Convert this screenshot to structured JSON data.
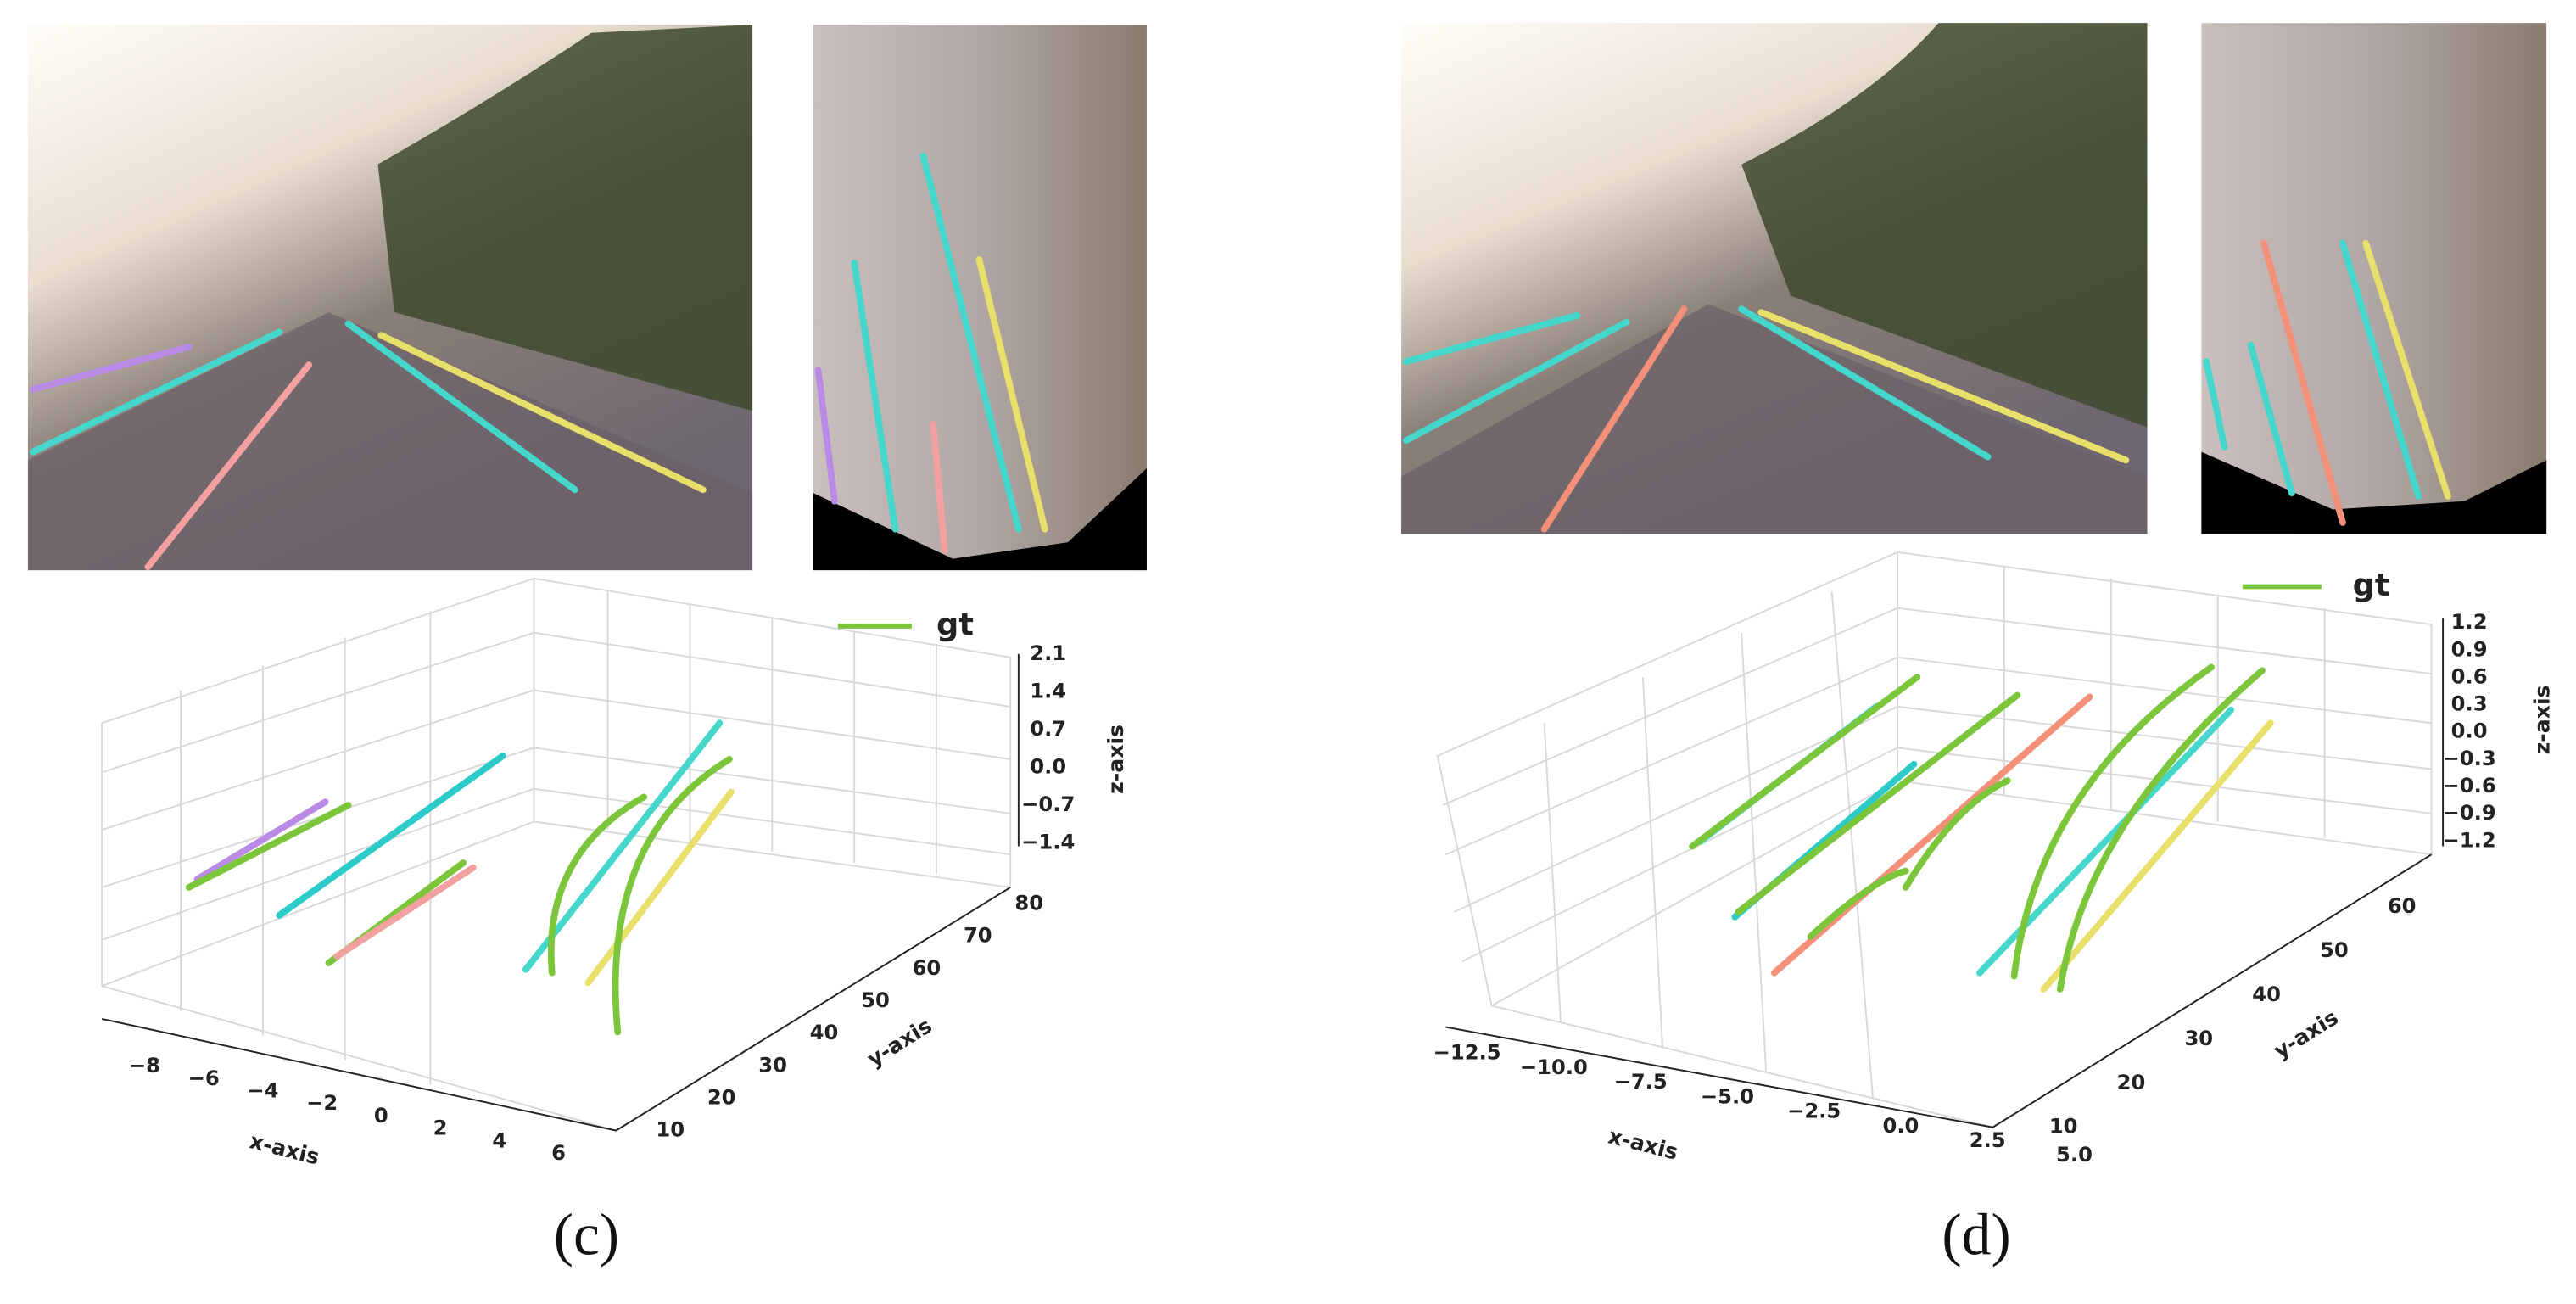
{
  "panels": [
    {
      "label": "(c)",
      "legend": "gt",
      "x_axis": {
        "title": "x-axis",
        "ticks": [
          "−8",
          "−6",
          "−4",
          "−2",
          "0",
          "2",
          "4",
          "6"
        ]
      },
      "y_axis": {
        "title": "y-axis",
        "ticks": [
          "10",
          "20",
          "30",
          "40",
          "50",
          "60",
          "70",
          "80"
        ]
      },
      "z_axis": {
        "title": "z-axis",
        "ticks": [
          "2.1",
          "1.4",
          "0.7",
          "0.0",
          "−0.7",
          "−1.4"
        ]
      }
    },
    {
      "label": "(d)",
      "legend": "gt",
      "x_axis": {
        "title": "x-axis",
        "ticks": [
          "−12.5",
          "−10.0",
          "−7.5",
          "−5.0",
          "−2.5",
          "0.0",
          "2.5",
          "5.0"
        ]
      },
      "y_axis": {
        "title": "y-axis",
        "ticks": [
          "10",
          "20",
          "30",
          "40",
          "50",
          "60"
        ]
      },
      "z_axis": {
        "title": "z-axis",
        "ticks": [
          "1.2",
          "0.9",
          "0.6",
          "0.3",
          "0.0",
          "−0.3",
          "−0.6",
          "−0.9",
          "−1.2"
        ]
      }
    }
  ]
}
